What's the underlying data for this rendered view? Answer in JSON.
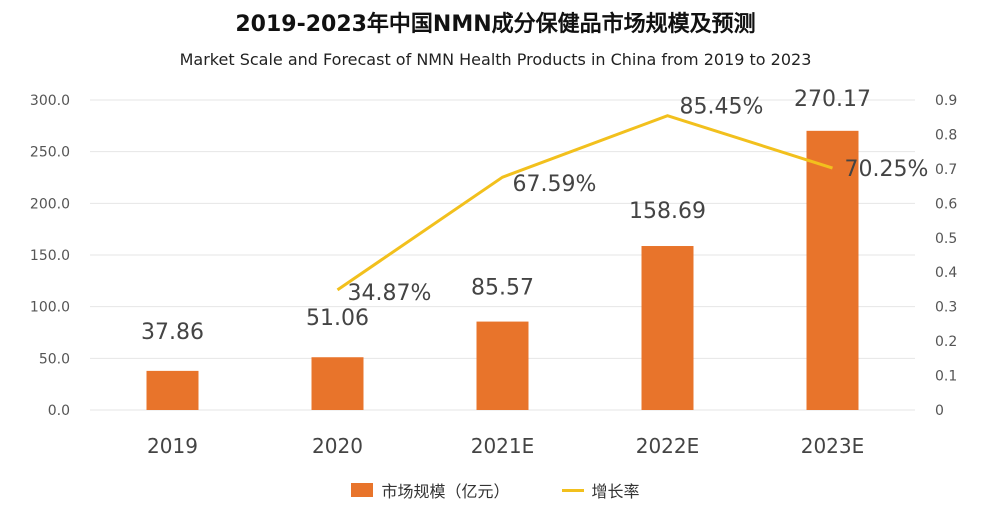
{
  "title": "2019-2023年中国NMN成分保健品市场规模及预测",
  "subtitle": "Market Scale and Forecast of NMN Health Products in China from 2019 to 2023",
  "colors": {
    "bar": "#E8742B",
    "line": "#F2C01D",
    "grid": "#e6e6e6"
  },
  "chart_data": {
    "type": "bar",
    "categories": [
      "2019",
      "2020",
      "2021E",
      "2022E",
      "2023E"
    ],
    "series": [
      {
        "name": "市场规模（亿元）",
        "type": "bar",
        "axis": "left",
        "values": [
          37.86,
          51.06,
          85.57,
          158.69,
          270.17
        ],
        "labels": [
          "37.86",
          "51.06",
          "85.57",
          "158.69",
          "270.17"
        ]
      },
      {
        "name": "增长率",
        "type": "line",
        "axis": "right",
        "values": [
          null,
          0.3487,
          0.6759,
          0.8545,
          0.7025
        ],
        "labels": [
          "",
          "34.87%",
          "67.59%",
          "85.45%",
          "70.25%"
        ]
      }
    ],
    "y_left": {
      "ylim": [
        0,
        300
      ],
      "ticks": [
        "0.0",
        "50.0",
        "100.0",
        "150.0",
        "200.0",
        "250.0",
        "300.0"
      ]
    },
    "y_right": {
      "ylim": [
        0,
        0.9
      ],
      "ticks": [
        "0",
        "0.1",
        "0.2",
        "0.3",
        "0.4",
        "0.5",
        "0.6",
        "0.7",
        "0.8",
        "0.9"
      ]
    },
    "grid": true,
    "legend": "bottom"
  },
  "legend": {
    "bar_label": "市场规模（亿元）",
    "line_label": "增长率"
  }
}
